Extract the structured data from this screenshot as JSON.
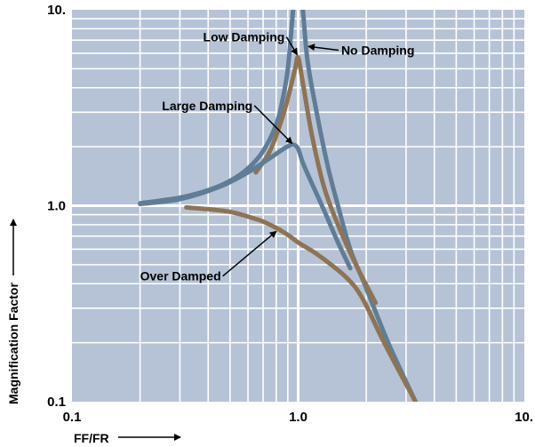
{
  "chart_data": {
    "type": "line",
    "xlabel": "FF/FR",
    "ylabel": "Magnification Factor",
    "xscale": "log",
    "yscale": "log",
    "xlim": [
      0.1,
      10
    ],
    "ylim": [
      0.1,
      10
    ],
    "grid": true,
    "xticks": [
      {
        "value": 0.1,
        "label": "0.1"
      },
      {
        "value": 1,
        "label": "1.0"
      },
      {
        "value": 10,
        "label": "10."
      }
    ],
    "yticks": [
      {
        "value": 0.1,
        "label": "0.1"
      },
      {
        "value": 1,
        "label": "1.0"
      },
      {
        "value": 10,
        "label": "10."
      }
    ],
    "colors": {
      "background": "#b6c3d6",
      "grid": "#ffffff",
      "blue_curve": "#5f7d96",
      "brown_curve": "#8e7453"
    },
    "series": [
      {
        "color_key": "blue_curve",
        "x": [
          1.05,
          1.1,
          1.2,
          1.35,
          1.5,
          1.7,
          2.0,
          2.5,
          3.3
        ],
        "y": [
          10,
          5.5,
          3.1,
          1.6,
          1.0,
          0.6,
          0.38,
          0.2,
          0.1
        ]
      },
      {
        "color_key": "blue_curve",
        "x": [
          0.95,
          0.9,
          0.85,
          0.8,
          0.7,
          0.6,
          0.5,
          0.4,
          0.3,
          0.2
        ],
        "y": [
          10,
          5.0,
          3.4,
          2.6,
          1.9,
          1.55,
          1.34,
          1.2,
          1.1,
          1.03
        ]
      },
      {
        "color_key": "brown_curve",
        "x": [
          0.65,
          0.75,
          0.85,
          0.92,
          0.97,
          1.0,
          1.05,
          1.15,
          1.3,
          1.5,
          1.8,
          2.2
        ],
        "y": [
          1.48,
          1.9,
          2.8,
          3.9,
          5.0,
          5.7,
          4.2,
          2.3,
          1.25,
          0.8,
          0.5,
          0.32
        ]
      },
      {
        "color_key": "blue_curve",
        "x": [
          0.2,
          0.3,
          0.45,
          0.6,
          0.75,
          0.88,
          0.95,
          1.0,
          1.05,
          1.15,
          1.3,
          1.5,
          1.7
        ],
        "y": [
          1.02,
          1.08,
          1.25,
          1.48,
          1.75,
          1.98,
          2.05,
          1.95,
          1.65,
          1.3,
          0.95,
          0.65,
          0.48
        ]
      },
      {
        "color_key": "brown_curve",
        "x": [
          0.32,
          0.4,
          0.5,
          0.6,
          0.7,
          0.8,
          0.9,
          1.0,
          1.2,
          1.4,
          1.6,
          1.8,
          2.0,
          2.4,
          3.3
        ],
        "y": [
          0.98,
          0.96,
          0.93,
          0.88,
          0.83,
          0.77,
          0.71,
          0.65,
          0.57,
          0.5,
          0.44,
          0.38,
          0.31,
          0.2,
          0.1
        ]
      }
    ],
    "annotations": [
      {
        "text": "Low Damping",
        "x": 0.38,
        "y": 6.9,
        "arrow_to": [
          0.99,
          5.9
        ]
      },
      {
        "text": "No Damping",
        "x": 1.55,
        "y": 5.9,
        "arrow_to": [
          1.11,
          6.5
        ]
      },
      {
        "text": "Large Damping",
        "x": 0.25,
        "y": 3.08,
        "arrow_to": [
          0.94,
          2.08
        ]
      },
      {
        "text": "Over Damped",
        "x": 0.2,
        "y": 0.415,
        "arrow_to": [
          0.8,
          0.74
        ]
      }
    ]
  }
}
